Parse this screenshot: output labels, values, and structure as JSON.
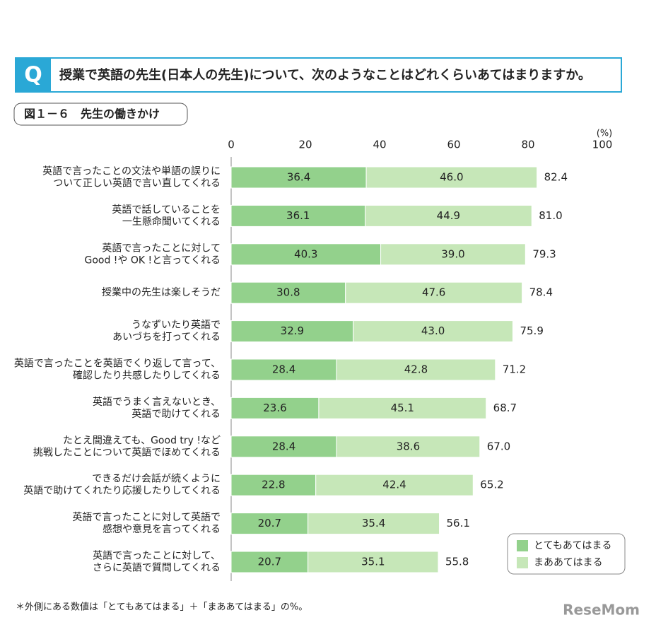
{
  "question_mark": "Q",
  "question": "授業で英語の先生(日本人の先生)について、次のようなことはどれくらいあてはまりますか。",
  "footnote": "＊外側にある数値は「とてもあてはまる」＋「まああてはまる」の%。",
  "watermark": "ReseMom",
  "chart_data": {
    "type": "stacked-barh",
    "title": "図１－６　先生の働きかけ",
    "x_unit": "(%)",
    "categories": [
      [
        "英語で言ったことの文法や単語の誤りに",
        "ついて正しい英語で言い直してくれる"
      ],
      [
        "英語で話していることを",
        "一生懸命聞いてくれる"
      ],
      [
        "英語で言ったことに対して",
        "Good !や OK !と言ってくれる"
      ],
      [
        "授業中の先生は楽しそうだ"
      ],
      [
        "うなずいたり英語で",
        "あいづちを打ってくれる"
      ],
      [
        "英語で言ったことを英語でくり返して言って、",
        "確認したり共感したりしてくれる"
      ],
      [
        "英語でうまく言えないとき、",
        "英語で助けてくれる"
      ],
      [
        "たとえ間違えても、Good try !など",
        "挑戦したことについて英語でほめてくれる"
      ],
      [
        "できるだけ会話が続くように",
        "英語で助けてくれたり応援したりしてくれる"
      ],
      [
        "英語で言ったことに対して英語で",
        "感想や意見を言ってくれる"
      ],
      [
        "英語で言ったことに対して、",
        "さらに英語で質問してくれる"
      ]
    ],
    "series": [
      {
        "name": "とてもあてはまる",
        "color": "#93d18c",
        "values": [
          36.4,
          36.1,
          40.3,
          30.8,
          32.9,
          28.4,
          23.6,
          28.4,
          22.8,
          20.7,
          20.7
        ]
      },
      {
        "name": "まああてはまる",
        "color": "#c6e7b8",
        "values": [
          46.0,
          44.9,
          39.0,
          47.6,
          43.0,
          42.8,
          45.1,
          38.6,
          42.4,
          35.4,
          35.1
        ]
      }
    ],
    "totals": [
      82.4,
      81.0,
      79.3,
      78.4,
      75.9,
      71.2,
      68.7,
      67.0,
      65.2,
      56.1,
      55.8
    ],
    "total_labels": [
      "82.4",
      "81.0",
      "79.3",
      "78.4",
      "75.9",
      "71.2",
      "68.7",
      "67.0",
      "65.2",
      "56.1",
      "55.8"
    ],
    "value_labels": [
      [
        "36.4",
        "36.1",
        "40.3",
        "30.8",
        "32.9",
        "28.4",
        "23.6",
        "28.4",
        "22.8",
        "20.7",
        "20.7"
      ],
      [
        "46.0",
        "44.9",
        "39.0",
        "47.6",
        "43.0",
        "42.8",
        "45.1",
        "38.6",
        "42.4",
        "35.4",
        "35.1"
      ]
    ],
    "xlim": [
      0,
      100
    ],
    "xticks": [
      0,
      20,
      40,
      60,
      80,
      100
    ],
    "legend": "lower right"
  }
}
